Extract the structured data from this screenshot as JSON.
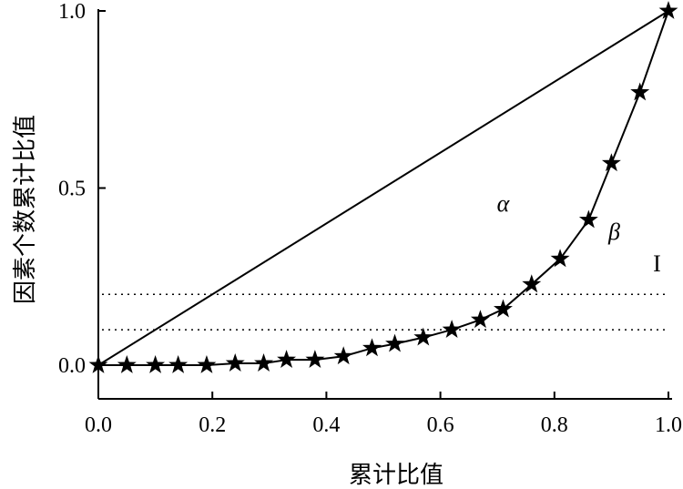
{
  "chart_data": {
    "type": "line",
    "xlabel": "累计比值",
    "ylabel": "因素个数累计比值",
    "xlim": [
      0.0,
      1.0
    ],
    "ylim": [
      0.0,
      1.0
    ],
    "x_ticks": [
      "0.0",
      "0.2",
      "0.4",
      "0.6",
      "0.8",
      "1.0"
    ],
    "y_ticks": [
      "0.0",
      "0.5",
      "1.0"
    ],
    "grid": false,
    "series": [
      {
        "marker": "star",
        "color": "#000000",
        "x": [
          0.0,
          0.05,
          0.1,
          0.14,
          0.19,
          0.24,
          0.29,
          0.33,
          0.38,
          0.43,
          0.48,
          0.52,
          0.57,
          0.62,
          0.67,
          0.71,
          0.76,
          0.81,
          0.86,
          0.9,
          0.95,
          1.0
        ],
        "y": [
          0.0,
          0.0,
          0.0,
          0.0,
          0.0,
          0.005,
          0.005,
          0.015,
          0.015,
          0.025,
          0.048,
          0.06,
          0.078,
          0.1,
          0.128,
          0.158,
          0.228,
          0.3,
          0.41,
          0.57,
          0.77,
          1.0
        ]
      },
      {
        "marker": "none",
        "color": "#000000",
        "x": [
          0.0,
          1.0
        ],
        "y": [
          0.0,
          1.0
        ]
      }
    ],
    "reference_lines": [
      {
        "axis": "y",
        "value": 0.2,
        "style": "dotted"
      },
      {
        "axis": "y",
        "value": 0.1,
        "style": "dotted"
      }
    ],
    "annotations": [
      {
        "text": "α",
        "x": 0.71,
        "y": 0.435,
        "style": "italic"
      },
      {
        "text": "β",
        "x": 0.905,
        "y": 0.355,
        "style": "italic"
      },
      {
        "text": "I",
        "x": 0.98,
        "y": 0.265,
        "style": "normal"
      }
    ]
  }
}
